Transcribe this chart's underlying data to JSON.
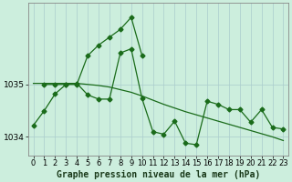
{
  "title": "Graphe pression niveau de la mer (hPa)",
  "background_color": "#cceedd",
  "grid_color": "#aacccc",
  "line_color": "#1a6b1a",
  "hours": [
    0,
    1,
    2,
    3,
    4,
    5,
    6,
    7,
    8,
    9,
    10,
    11,
    12,
    13,
    14,
    15,
    16,
    17,
    18,
    19,
    20,
    21,
    22,
    23
  ],
  "main_series": [
    1034.22,
    1034.5,
    1034.82,
    1035.0,
    1035.02,
    1034.8,
    1034.72,
    1034.72,
    1035.6,
    1035.68,
    1034.73,
    1034.1,
    1034.05,
    1034.3,
    1033.88,
    1033.85,
    1034.68,
    1034.62,
    1034.52,
    1034.52,
    1034.28,
    1034.52,
    1034.18,
    1034.15
  ],
  "peak_series_x": [
    1,
    2,
    3,
    4,
    5,
    6,
    7,
    8,
    9,
    10
  ],
  "peak_series_y": [
    1035.0,
    1035.0,
    1035.0,
    1035.0,
    1035.55,
    1035.75,
    1035.9,
    1036.05,
    1036.28,
    1035.55
  ],
  "trend_x": [
    0,
    4,
    5,
    6,
    7,
    8,
    9,
    10,
    11,
    12,
    13,
    14,
    15,
    16,
    17,
    18,
    19,
    20,
    21,
    22,
    23
  ],
  "trend_y": [
    1035.02,
    1035.02,
    1035.0,
    1034.98,
    1034.95,
    1034.9,
    1034.85,
    1034.78,
    1034.7,
    1034.62,
    1034.55,
    1034.48,
    1034.42,
    1034.36,
    1034.3,
    1034.24,
    1034.18,
    1034.12,
    1034.06,
    1034.0,
    1033.93
  ],
  "ylim_min": 1033.65,
  "ylim_max": 1036.55,
  "yticks": [
    1034,
    1035
  ],
  "tick_fontsize": 6.5,
  "title_fontsize": 7,
  "marker_size": 2.5,
  "linewidth": 0.9
}
